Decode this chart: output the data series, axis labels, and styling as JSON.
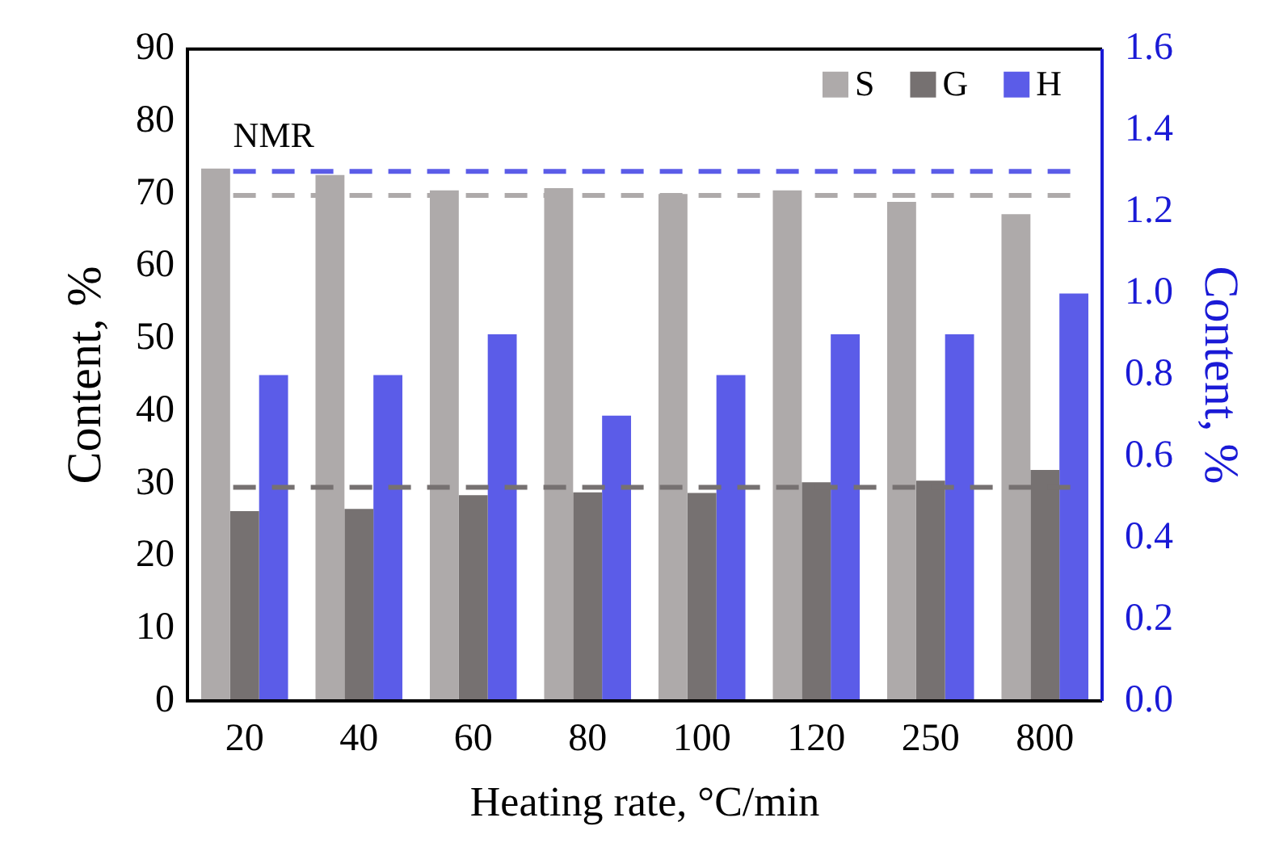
{
  "chart_data": {
    "type": "bar",
    "xlabel": "Heating rate, °C/min",
    "ylabel": "Content, %",
    "y2label": "Content, %",
    "categories": [
      "20",
      "40",
      "60",
      "80",
      "100",
      "120",
      "250",
      "800"
    ],
    "series": [
      {
        "name": "S",
        "color": "#aeaaaa",
        "values": [
          73.5,
          72.6,
          70.5,
          70.8,
          70.0,
          70.5,
          68.9,
          67.2
        ]
      },
      {
        "name": "G",
        "color": "#767171",
        "values": [
          26.2,
          26.5,
          28.4,
          28.8,
          28.7,
          30.2,
          30.4,
          31.9
        ]
      },
      {
        "name": "H",
        "color": "#5b5ce8",
        "axis": "y2",
        "values": [
          0.8,
          0.8,
          0.9,
          0.7,
          0.8,
          0.9,
          0.9,
          1.0
        ]
      }
    ],
    "ylim": [
      0,
      90
    ],
    "yticks": [
      0,
      10,
      20,
      30,
      40,
      50,
      60,
      70,
      80,
      90
    ],
    "y2lim": [
      0,
      1.6
    ],
    "y2ticks": [
      {
        "value": 0,
        "label": "0.0"
      },
      {
        "value": 0.2,
        "label": "0.2"
      },
      {
        "value": 0.4,
        "label": "0.4"
      },
      {
        "value": 0.6,
        "label": "0.6"
      },
      {
        "value": 0.8,
        "label": "0.8"
      },
      {
        "value": 1,
        "label": "1.0"
      },
      {
        "value": 1.2,
        "label": "1.2"
      },
      {
        "value": 1.4,
        "label": "1.4"
      },
      {
        "value": 1.6,
        "label": "1.6"
      }
    ],
    "ref_lines": [
      {
        "axis": "y2",
        "value": 1.3,
        "color": "#5b5ce8",
        "line_style": "dashed"
      },
      {
        "axis": "y",
        "value": 69.8,
        "color": "#aeaaaa",
        "line_style": "dashed"
      },
      {
        "axis": "y",
        "value": 29.5,
        "color": "#767171",
        "line_style": "dashed"
      }
    ],
    "annotations": [
      "NMR"
    ],
    "legend": "top right",
    "grid": false
  }
}
